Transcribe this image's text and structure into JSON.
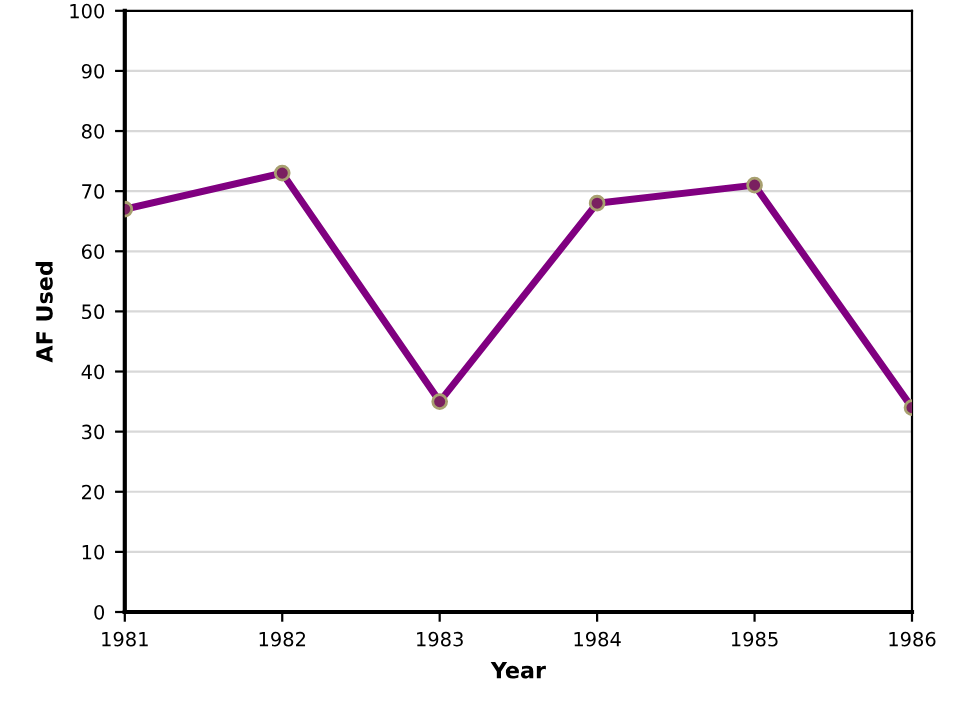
{
  "chart_data": {
    "type": "line",
    "xlabel": "Year",
    "ylabel": "AF Used",
    "x": [
      1981,
      1982,
      1983,
      1984,
      1985,
      1986
    ],
    "series": [
      {
        "color": "#800080",
        "values": [
          67,
          73,
          35,
          68,
          71,
          34
        ]
      }
    ],
    "xlim": [
      1981,
      1986
    ],
    "xticks": [
      1981,
      1982,
      1983,
      1984,
      1985,
      1986
    ],
    "ylim": [
      0,
      100
    ],
    "yticks": [
      0,
      10,
      20,
      30,
      40,
      50,
      60,
      70,
      80,
      90,
      100
    ],
    "grid": "y",
    "marker": "circle",
    "line_style": "solid"
  }
}
